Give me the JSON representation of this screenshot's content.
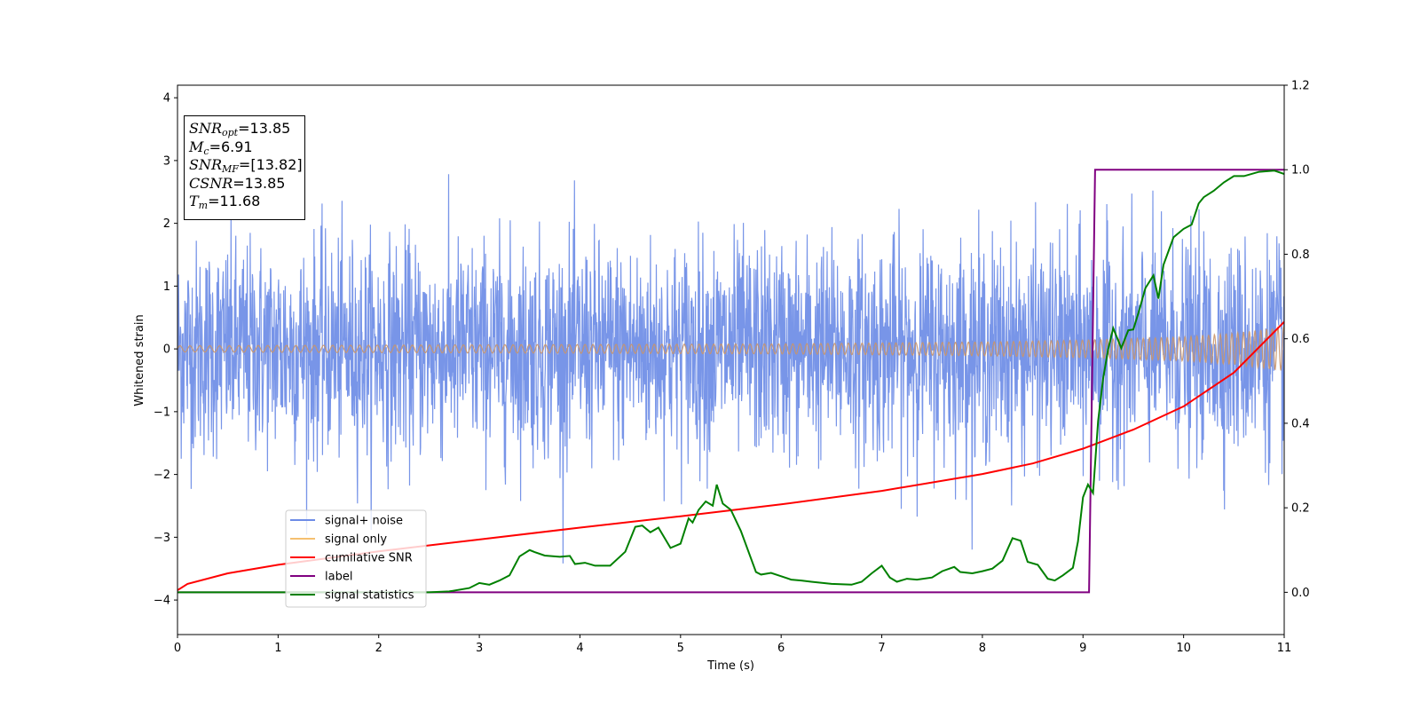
{
  "chart_data": {
    "type": "line",
    "xlabel": "Time (s)",
    "ylabel": "Whitened strain",
    "xlim": [
      0,
      11
    ],
    "ylim_left": [
      -4.55,
      4.2
    ],
    "ylim_right": [
      -0.1,
      1.2
    ],
    "x_ticks": [
      "0",
      "1",
      "2",
      "3",
      "4",
      "5",
      "6",
      "7",
      "8",
      "9",
      "10",
      "11"
    ],
    "y_ticks_left": [
      "−4",
      "−3",
      "−2",
      "−1",
      "0",
      "1",
      "2",
      "3",
      "4"
    ],
    "y_ticks_right": [
      "0.0",
      "0.2",
      "0.4",
      "0.6",
      "0.8",
      "1.0",
      "1.2"
    ],
    "annotation": {
      "snr_opt": {
        "name": "SNR",
        "sub": "opt",
        "value": "=13.85"
      },
      "mc": {
        "name": "M",
        "sub": "c",
        "value": "=6.91"
      },
      "snr_mf": {
        "name": "SNR",
        "sub": "MF",
        "value": "=[13.82]"
      },
      "csnr": {
        "name": "CSNR",
        "value": "=13.85"
      },
      "tm": {
        "name": "T",
        "sub": "m",
        "value": "=11.68"
      }
    },
    "legend": {
      "placement": "lower-left",
      "entries": [
        "signal+ noise",
        "signal only",
        "cumilative SNR",
        "label",
        "signal statistics"
      ]
    },
    "series": [
      {
        "name": "signal+ noise",
        "axis": "left",
        "color": "#6d8ce6",
        "noise_sigma": 0.85,
        "x_range": [
          0,
          11
        ]
      },
      {
        "name": "signal only",
        "axis": "left",
        "color": "#f5c070",
        "envelope": {
          "x": [
            0,
            2,
            4,
            6,
            8,
            9,
            10,
            10.5,
            11
          ],
          "amp": [
            0.05,
            0.06,
            0.07,
            0.08,
            0.11,
            0.14,
            0.19,
            0.25,
            0.35
          ]
        }
      },
      {
        "name": "cumilative SNR",
        "axis": "right",
        "color": "#ff0000",
        "x": [
          0,
          0.1,
          0.5,
          1,
          2,
          3,
          4,
          5,
          6,
          7,
          8,
          8.5,
          9,
          9.5,
          10,
          10.5,
          11
        ],
        "y": [
          0.005,
          0.02,
          0.045,
          0.065,
          0.097,
          0.125,
          0.153,
          0.18,
          0.208,
          0.24,
          0.28,
          0.305,
          0.34,
          0.385,
          0.44,
          0.52,
          0.64
        ]
      },
      {
        "name": "label",
        "axis": "right",
        "color": "#800080",
        "x": [
          0,
          9.06,
          9.12,
          11
        ],
        "y": [
          0,
          0,
          1,
          1
        ]
      },
      {
        "name": "signal statistics",
        "axis": "right",
        "color": "#008000",
        "x": [
          0,
          0.5,
          1,
          1.5,
          2,
          2.5,
          2.7,
          2.9,
          3.0,
          3.1,
          3.2,
          3.3,
          3.4,
          3.5,
          3.55,
          3.65,
          3.8,
          3.9,
          3.95,
          4.05,
          4.15,
          4.3,
          4.45,
          4.55,
          4.62,
          4.7,
          4.78,
          4.9,
          5.0,
          5.08,
          5.12,
          5.18,
          5.25,
          5.32,
          5.36,
          5.42,
          5.5,
          5.6,
          5.75,
          5.8,
          5.9,
          6.0,
          6.1,
          6.2,
          6.3,
          6.5,
          6.7,
          6.8,
          6.9,
          7.0,
          7.08,
          7.15,
          7.25,
          7.35,
          7.5,
          7.6,
          7.72,
          7.78,
          7.9,
          8.0,
          8.1,
          8.2,
          8.3,
          8.38,
          8.45,
          8.55,
          8.65,
          8.72,
          8.8,
          8.9,
          8.95,
          9.0,
          9.05,
          9.1,
          9.15,
          9.2,
          9.25,
          9.3,
          9.38,
          9.45,
          9.5,
          9.55,
          9.62,
          9.7,
          9.75,
          9.8,
          9.9,
          10.0,
          10.08,
          10.15,
          10.2,
          10.3,
          10.4,
          10.5,
          10.6,
          10.75,
          10.9,
          11.0
        ],
        "y": [
          0,
          0,
          0,
          0,
          0,
          0,
          0.002,
          0.01,
          0.022,
          0.018,
          0.028,
          0.04,
          0.085,
          0.1,
          0.095,
          0.087,
          0.084,
          0.086,
          0.067,
          0.07,
          0.063,
          0.063,
          0.096,
          0.155,
          0.158,
          0.142,
          0.153,
          0.105,
          0.115,
          0.175,
          0.165,
          0.195,
          0.215,
          0.205,
          0.255,
          0.21,
          0.195,
          0.145,
          0.048,
          0.042,
          0.046,
          0.038,
          0.03,
          0.028,
          0.025,
          0.02,
          0.018,
          0.025,
          0.045,
          0.063,
          0.035,
          0.025,
          0.032,
          0.03,
          0.035,
          0.05,
          0.06,
          0.048,
          0.045,
          0.05,
          0.056,
          0.075,
          0.128,
          0.122,
          0.072,
          0.065,
          0.032,
          0.028,
          0.04,
          0.058,
          0.12,
          0.225,
          0.255,
          0.235,
          0.405,
          0.505,
          0.575,
          0.625,
          0.578,
          0.62,
          0.622,
          0.66,
          0.72,
          0.75,
          0.695,
          0.775,
          0.84,
          0.86,
          0.87,
          0.92,
          0.935,
          0.95,
          0.97,
          0.985,
          0.985,
          0.995,
          0.998,
          0.99
        ]
      }
    ]
  }
}
